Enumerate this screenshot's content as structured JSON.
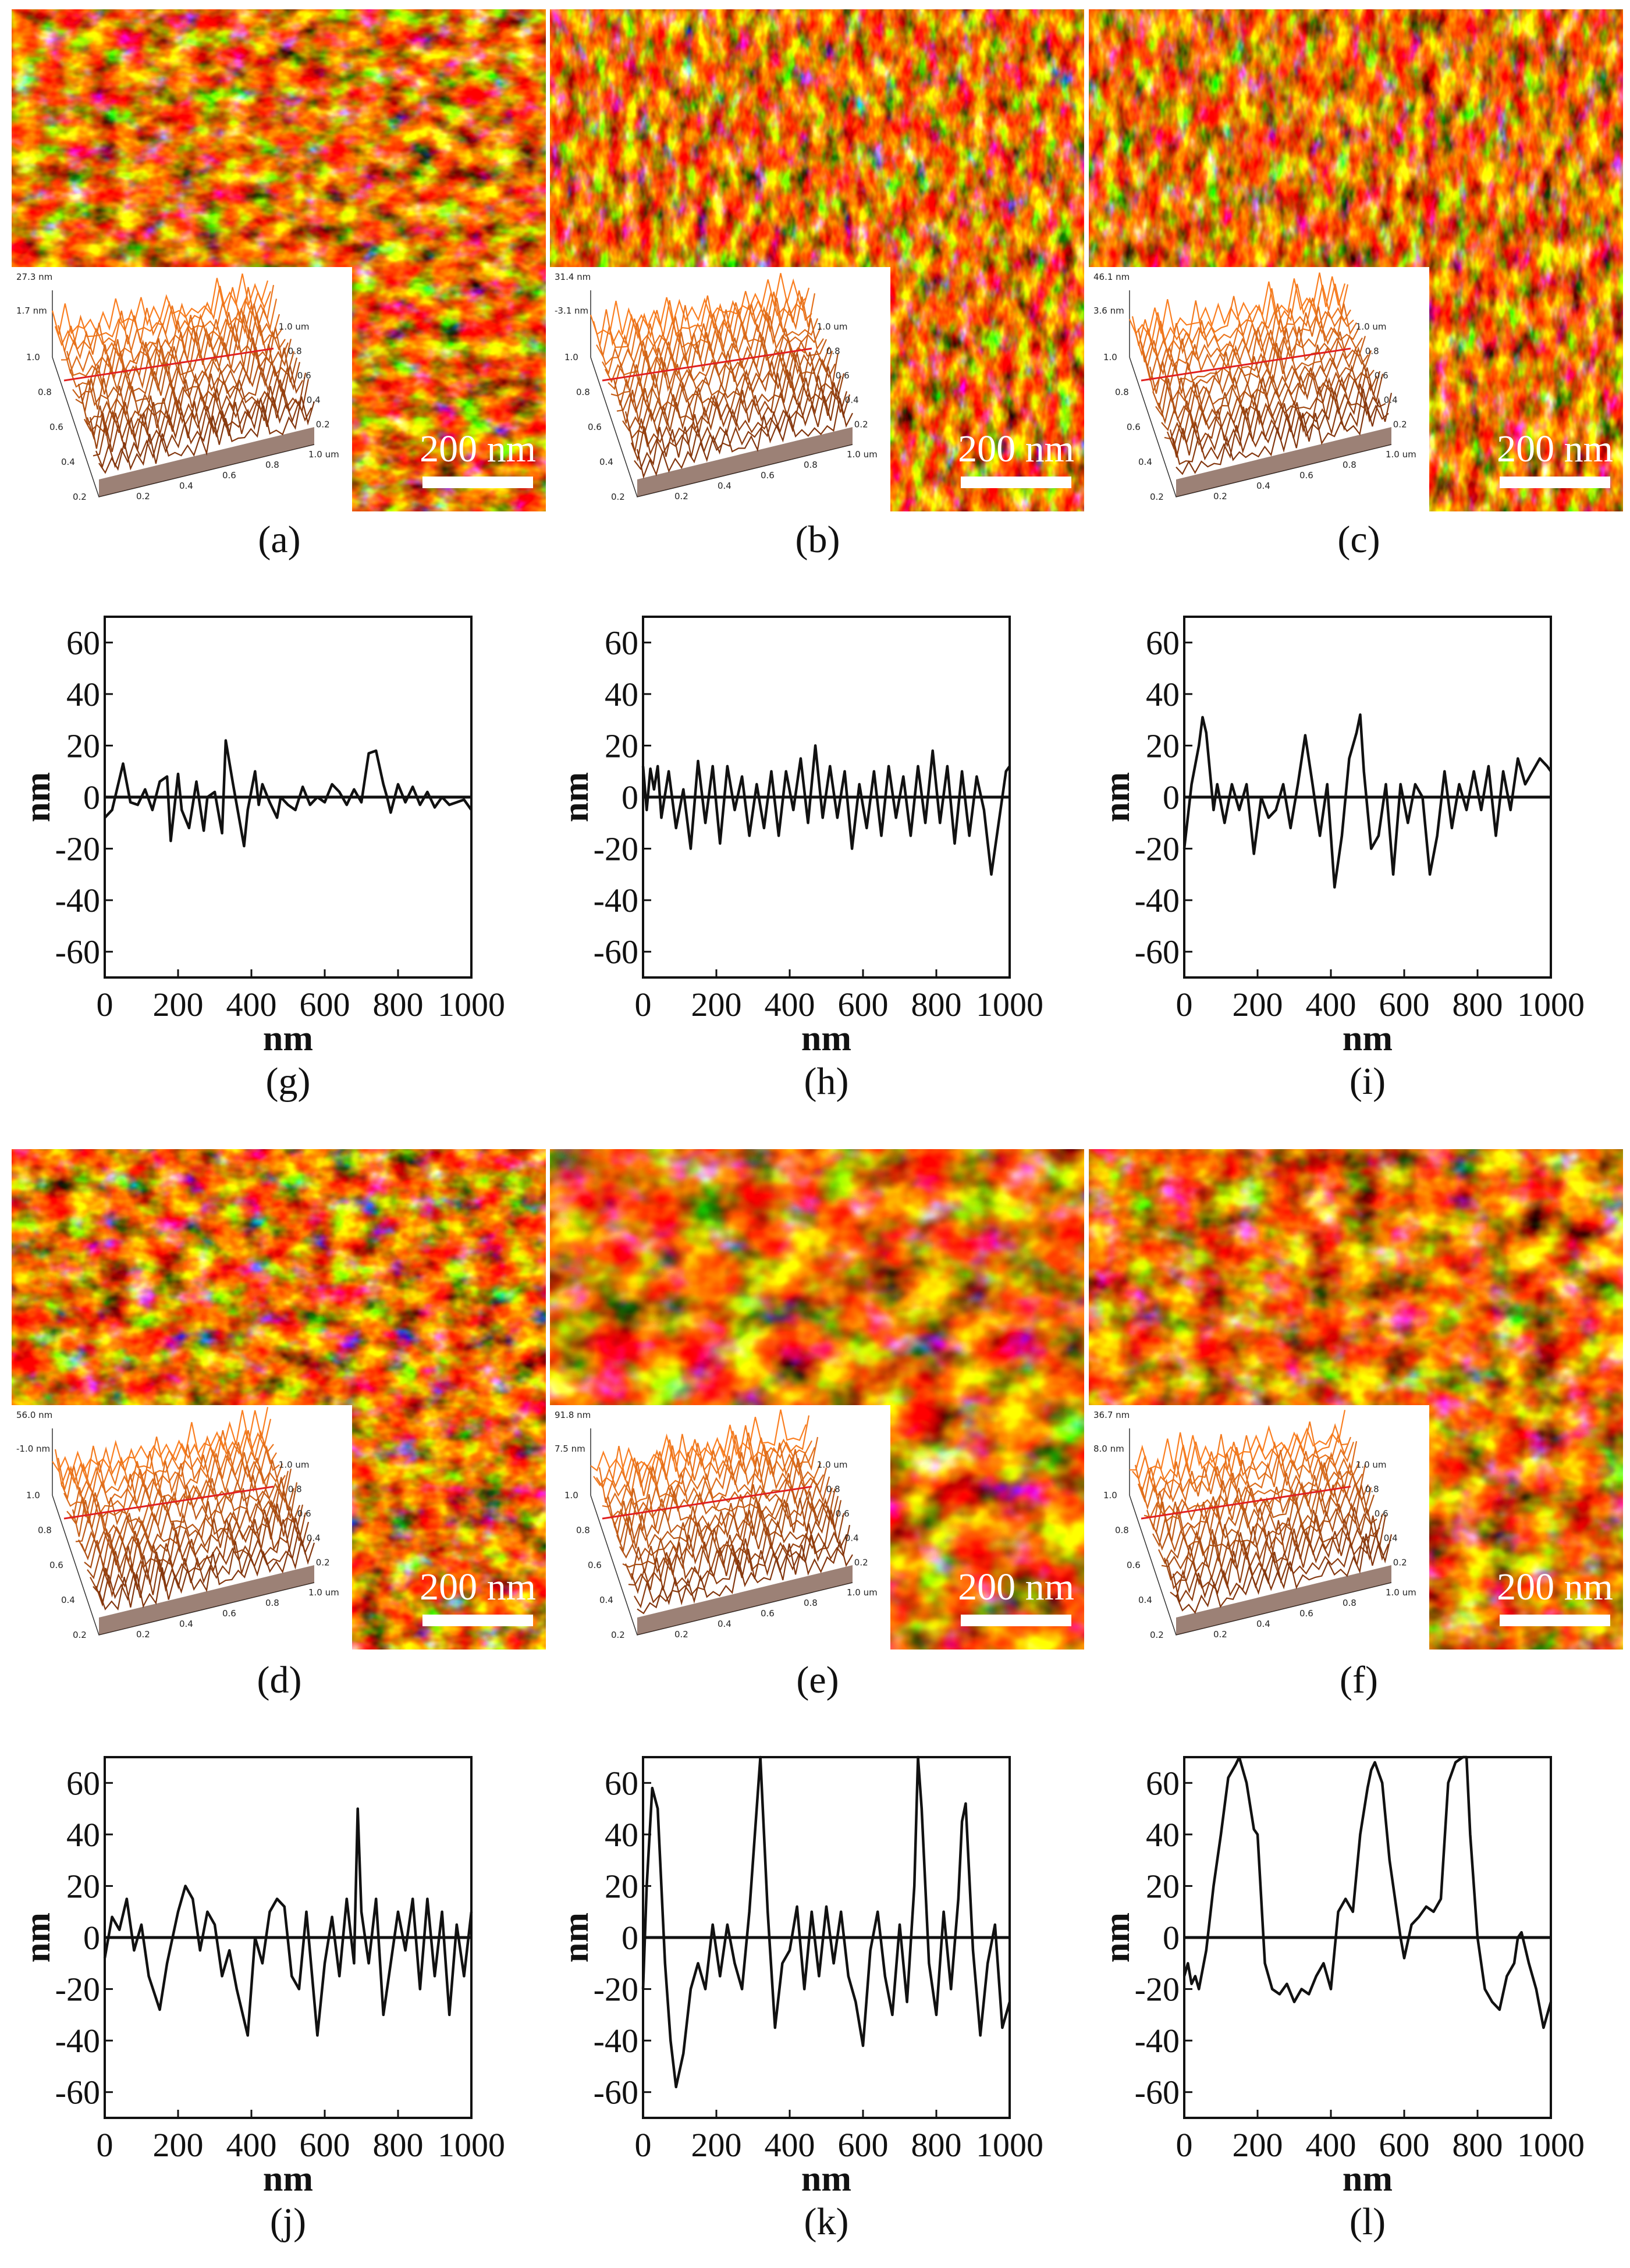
{
  "scale_bar_label": "200 nm",
  "colors": {
    "afm_dark": "#3d1002",
    "afm_mid": "#b3590c",
    "afm_light": "#fff2c0",
    "profile_line": "#111111",
    "inset_ridge": "#e02020"
  },
  "afm_images": [
    {
      "label": "(a)",
      "inset": {
        "z_top": "27.3 nm",
        "z_mid": "1.7 nm"
      }
    },
    {
      "label": "(b)",
      "inset": {
        "z_top": "31.4 nm",
        "z_mid": "-3.1 nm"
      }
    },
    {
      "label": "(c)",
      "inset": {
        "z_top": "46.1 nm",
        "z_mid": "3.6 nm"
      }
    },
    {
      "label": "(d)",
      "inset": {
        "z_top": "56.0 nm",
        "z_mid": "-1.0 nm"
      }
    },
    {
      "label": "(e)",
      "inset": {
        "z_top": "91.8 nm",
        "z_mid": "7.5 nm"
      }
    },
    {
      "label": "(f)",
      "inset": {
        "z_top": "36.7 nm",
        "z_mid": "8.0 nm"
      }
    }
  ],
  "inset_axes": {
    "left_ticks": [
      "1.0",
      "0.8",
      "0.6",
      "0.4",
      "0.2"
    ],
    "bottom_ticks": [
      "0.2",
      "0.4",
      "0.6",
      "0.8",
      "1.0 um"
    ],
    "right_ticks": [
      "1.0 um",
      "0.8",
      "0.6",
      "0.4",
      "0.2"
    ]
  },
  "chart_data": [
    {
      "type": "line",
      "label": "(g)",
      "xlabel": "nm",
      "ylabel": "nm",
      "xlim": [
        0,
        1000
      ],
      "ylim": [
        -70,
        70
      ],
      "x_ticks": [
        "0",
        "200",
        "400",
        "600",
        "800",
        "1000"
      ],
      "y_ticks": [
        "60",
        "40",
        "20",
        "0",
        "-20",
        "-40",
        "-60"
      ],
      "x": [
        0,
        20,
        50,
        70,
        90,
        110,
        130,
        150,
        170,
        180,
        200,
        210,
        230,
        250,
        270,
        280,
        300,
        320,
        330,
        350,
        370,
        380,
        390,
        410,
        420,
        430,
        450,
        470,
        480,
        500,
        520,
        540,
        560,
        580,
        600,
        620,
        640,
        660,
        680,
        700,
        720,
        740,
        760,
        770,
        780,
        800,
        820,
        840,
        860,
        880,
        900,
        920,
        940,
        960,
        980,
        1000
      ],
      "y": [
        -8,
        -5,
        13,
        -2,
        -3,
        3,
        -5,
        6,
        8,
        -17,
        9,
        -5,
        -12,
        6,
        -13,
        0,
        2,
        -14,
        22,
        5,
        -11,
        -19,
        -5,
        10,
        -3,
        5,
        -2,
        -8,
        0,
        -3,
        -5,
        4,
        -3,
        0,
        -2,
        5,
        2,
        -3,
        3,
        -2,
        17,
        18,
        5,
        0,
        -6,
        5,
        -2,
        4,
        -3,
        2,
        -4,
        0,
        -3,
        -2,
        -1,
        -5
      ]
    },
    {
      "type": "line",
      "label": "(h)",
      "xlabel": "nm",
      "ylabel": "nm",
      "xlim": [
        0,
        1000
      ],
      "ylim": [
        -70,
        70
      ],
      "x_ticks": [
        "0",
        "200",
        "400",
        "600",
        "800",
        "1000"
      ],
      "y_ticks": [
        "60",
        "40",
        "20",
        "0",
        "-20",
        "-40",
        "-60"
      ],
      "x": [
        0,
        10,
        20,
        30,
        40,
        50,
        70,
        90,
        110,
        130,
        150,
        170,
        190,
        210,
        230,
        250,
        270,
        290,
        310,
        330,
        350,
        370,
        390,
        410,
        430,
        450,
        470,
        490,
        510,
        530,
        550,
        570,
        590,
        610,
        630,
        650,
        670,
        690,
        710,
        730,
        750,
        770,
        790,
        810,
        830,
        850,
        870,
        890,
        910,
        930,
        950,
        970,
        990,
        1000
      ],
      "y": [
        12,
        -5,
        11,
        3,
        12,
        -8,
        10,
        -12,
        3,
        -20,
        14,
        -10,
        12,
        -18,
        12,
        -5,
        8,
        -15,
        5,
        -12,
        10,
        -15,
        10,
        -5,
        15,
        -10,
        20,
        -8,
        12,
        -8,
        10,
        -20,
        5,
        -12,
        10,
        -15,
        12,
        -8,
        8,
        -15,
        12,
        -10,
        18,
        -10,
        12,
        -18,
        10,
        -15,
        8,
        -5,
        -30,
        -10,
        10,
        12
      ]
    },
    {
      "type": "line",
      "label": "(i)",
      "xlabel": "nm",
      "ylabel": "nm",
      "xlim": [
        0,
        1000
      ],
      "ylim": [
        -70,
        70
      ],
      "x_ticks": [
        "0",
        "200",
        "400",
        "600",
        "800",
        "1000"
      ],
      "y_ticks": [
        "60",
        "40",
        "20",
        "0",
        "-20",
        "-40",
        "-60"
      ],
      "x": [
        0,
        20,
        40,
        50,
        60,
        80,
        90,
        110,
        130,
        150,
        170,
        190,
        210,
        230,
        250,
        270,
        290,
        310,
        330,
        350,
        370,
        390,
        410,
        430,
        450,
        470,
        480,
        490,
        510,
        530,
        550,
        570,
        590,
        610,
        630,
        650,
        670,
        690,
        710,
        730,
        750,
        770,
        790,
        810,
        830,
        850,
        870,
        890,
        910,
        930,
        950,
        970,
        990,
        1000
      ],
      "y": [
        -20,
        5,
        20,
        31,
        25,
        -5,
        5,
        -10,
        5,
        -5,
        5,
        -22,
        0,
        -8,
        -5,
        5,
        -12,
        5,
        24,
        5,
        -15,
        5,
        -35,
        -15,
        15,
        25,
        32,
        10,
        -20,
        -15,
        5,
        -30,
        5,
        -10,
        5,
        0,
        -30,
        -15,
        10,
        -12,
        5,
        -5,
        10,
        -5,
        12,
        -15,
        10,
        -5,
        15,
        5,
        10,
        15,
        12,
        10
      ]
    },
    {
      "type": "line",
      "label": "(j)",
      "xlabel": "nm",
      "ylabel": "nm",
      "xlim": [
        0,
        1000
      ],
      "ylim": [
        -70,
        70
      ],
      "x_ticks": [
        "0",
        "200",
        "400",
        "600",
        "800",
        "1000"
      ],
      "y_ticks": [
        "60",
        "40",
        "20",
        "0",
        "-20",
        "-40",
        "-60"
      ],
      "x": [
        0,
        20,
        40,
        60,
        80,
        100,
        120,
        150,
        170,
        200,
        220,
        240,
        260,
        280,
        300,
        320,
        340,
        360,
        390,
        410,
        430,
        450,
        470,
        490,
        510,
        530,
        550,
        580,
        600,
        620,
        640,
        660,
        680,
        690,
        700,
        720,
        740,
        760,
        780,
        800,
        820,
        840,
        860,
        880,
        900,
        920,
        940,
        960,
        980,
        1000
      ],
      "y": [
        -8,
        8,
        3,
        15,
        -5,
        5,
        -15,
        -28,
        -10,
        10,
        20,
        15,
        -5,
        10,
        5,
        -15,
        -5,
        -20,
        -38,
        0,
        -10,
        10,
        15,
        12,
        -15,
        -20,
        10,
        -38,
        -10,
        8,
        -15,
        15,
        -10,
        50,
        10,
        -10,
        15,
        -30,
        -10,
        10,
        -5,
        15,
        -20,
        15,
        -15,
        10,
        -30,
        5,
        -15,
        10
      ]
    },
    {
      "type": "line",
      "label": "(k)",
      "xlabel": "nm",
      "ylabel": "nm",
      "xlim": [
        0,
        1000
      ],
      "ylim": [
        -70,
        70
      ],
      "x_ticks": [
        "0",
        "200",
        "400",
        "600",
        "800",
        "1000"
      ],
      "y_ticks": [
        "60",
        "40",
        "20",
        "0",
        "-20",
        "-40",
        "-60"
      ],
      "x": [
        0,
        10,
        25,
        40,
        60,
        75,
        90,
        110,
        130,
        150,
        170,
        190,
        210,
        230,
        250,
        270,
        290,
        310,
        320,
        340,
        360,
        380,
        400,
        420,
        440,
        460,
        480,
        500,
        520,
        540,
        560,
        580,
        600,
        620,
        640,
        660,
        680,
        700,
        720,
        740,
        750,
        760,
        780,
        800,
        820,
        840,
        860,
        870,
        880,
        900,
        920,
        940,
        960,
        980,
        1000
      ],
      "y": [
        -20,
        20,
        58,
        50,
        -10,
        -40,
        -58,
        -45,
        -20,
        -10,
        -20,
        5,
        -15,
        5,
        -10,
        -20,
        10,
        50,
        70,
        10,
        -35,
        -10,
        -5,
        12,
        -20,
        10,
        -15,
        12,
        -10,
        10,
        -15,
        -25,
        -42,
        -5,
        10,
        -15,
        -30,
        5,
        -25,
        20,
        70,
        50,
        -10,
        -30,
        10,
        -20,
        15,
        45,
        52,
        -5,
        -38,
        -10,
        5,
        -35,
        -25
      ]
    },
    {
      "type": "line",
      "label": "(l)",
      "xlabel": "nm",
      "ylabel": "nm",
      "xlim": [
        0,
        1000
      ],
      "ylim": [
        -70,
        70
      ],
      "x_ticks": [
        "0",
        "200",
        "400",
        "600",
        "800",
        "1000"
      ],
      "y_ticks": [
        "60",
        "40",
        "20",
        "0",
        "-20",
        "-40",
        "-60"
      ],
      "x": [
        0,
        10,
        20,
        30,
        40,
        60,
        80,
        100,
        120,
        140,
        150,
        170,
        190,
        200,
        220,
        240,
        260,
        280,
        300,
        320,
        340,
        360,
        380,
        400,
        420,
        440,
        460,
        480,
        500,
        510,
        520,
        540,
        560,
        580,
        590,
        600,
        620,
        640,
        660,
        680,
        700,
        720,
        740,
        760,
        770,
        780,
        800,
        820,
        840,
        860,
        880,
        900,
        910,
        920,
        940,
        960,
        980,
        1000
      ],
      "y": [
        -15,
        -10,
        -18,
        -15,
        -20,
        -5,
        20,
        40,
        62,
        67,
        70,
        60,
        42,
        40,
        -10,
        -20,
        -22,
        -18,
        -25,
        -20,
        -22,
        -15,
        -10,
        -20,
        10,
        15,
        10,
        40,
        58,
        65,
        68,
        60,
        30,
        10,
        0,
        -8,
        5,
        8,
        12,
        10,
        15,
        60,
        68,
        70,
        70,
        40,
        0,
        -20,
        -25,
        -28,
        -15,
        -10,
        0,
        2,
        -10,
        -20,
        -35,
        -25
      ]
    }
  ]
}
